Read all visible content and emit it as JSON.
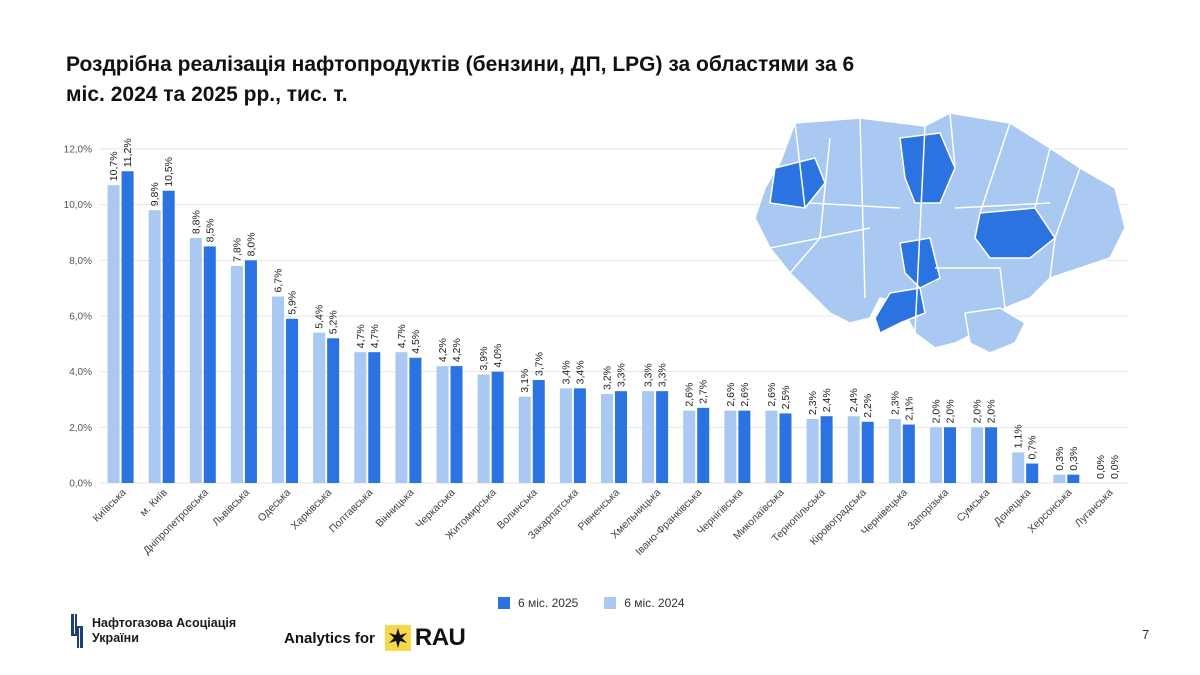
{
  "title": "Роздрібна реалізація нафтопродуктів (бензини, ДП, LPG) за областями за 6 міс. 2024 та 2025 рр., тис. т.",
  "colors": {
    "s2025": "#2a73e0",
    "s2024": "#a9c8f2",
    "map_light": "#a9c8f2",
    "map_dark": "#2a73e0",
    "grid": "#e6e6e6"
  },
  "chart_data": {
    "type": "bar",
    "title": "Роздрібна реалізація нафтопродуктів (бензини, ДП, LPG) за областями за 6 міс. 2024 та 2025 рр., тис. т.",
    "ylim": [
      0,
      12
    ],
    "yticks": [
      "0,0%",
      "2,0%",
      "4,0%",
      "6,0%",
      "8,0%",
      "10,0%",
      "12,0%"
    ],
    "categories": [
      "Київська",
      "м. Київ",
      "Дніпропетровська",
      "Львівська",
      "Одеська",
      "Харківська",
      "Полтавська",
      "Вінницька",
      "Черкаська",
      "Житомирська",
      "Волинська",
      "Закарпатська",
      "Рівненська",
      "Хмельницька",
      "Івано-Франківська",
      "Чернігівська",
      "Миколаївська",
      "Тернопільська",
      "Кіровоградська",
      "Чернівецька",
      "Запорізька",
      "Сумська",
      "Донецька",
      "Херсонська",
      "Луганська"
    ],
    "series": [
      {
        "name": "6 міс. 2024",
        "values": [
          10.7,
          9.8,
          8.8,
          7.8,
          6.7,
          5.4,
          4.7,
          4.7,
          4.2,
          3.9,
          3.1,
          3.4,
          3.2,
          3.3,
          2.6,
          2.6,
          2.6,
          2.3,
          2.4,
          2.3,
          2.0,
          2.0,
          1.1,
          0.3,
          0.0
        ],
        "labels": [
          "10,7%",
          "9,8%",
          "8,8%",
          "7,8%",
          "6,7%",
          "5,4%",
          "4,7%",
          "4,7%",
          "4,2%",
          "3,9%",
          "3,1%",
          "3,4%",
          "3,2%",
          "3,3%",
          "2,6%",
          "2,6%",
          "2,6%",
          "2,3%",
          "2,4%",
          "2,3%",
          "2,0%",
          "2,0%",
          "1,1%",
          "0,3%",
          "0,0%"
        ]
      },
      {
        "name": "6 міс. 2025",
        "values": [
          11.2,
          10.5,
          8.5,
          8.0,
          5.9,
          5.2,
          4.7,
          4.5,
          4.2,
          4.0,
          3.7,
          3.4,
          3.3,
          3.3,
          2.7,
          2.6,
          2.5,
          2.4,
          2.2,
          2.1,
          2.0,
          2.0,
          0.7,
          0.3,
          0.0
        ],
        "labels": [
          "11,2%",
          "10,5%",
          "8,5%",
          "8,0%",
          "5,9%",
          "5,2%",
          "4,7%",
          "4,5%",
          "4,2%",
          "4,0%",
          "3,7%",
          "3,4%",
          "3,3%",
          "3,3%",
          "2,7%",
          "2,6%",
          "2,5%",
          "2,4%",
          "2,2%",
          "2,1%",
          "2,0%",
          "2,0%",
          "0,7%",
          "0,3%",
          "0,0%"
        ]
      }
    ]
  },
  "legend": {
    "s2025": "6 міс. 2025",
    "s2024": "6 міс. 2024"
  },
  "footer": {
    "org_line1": "Нафтогазова Асоціація",
    "org_line2": "України",
    "analytics": "Analytics for",
    "brand": "RAU",
    "page_number": "7"
  }
}
